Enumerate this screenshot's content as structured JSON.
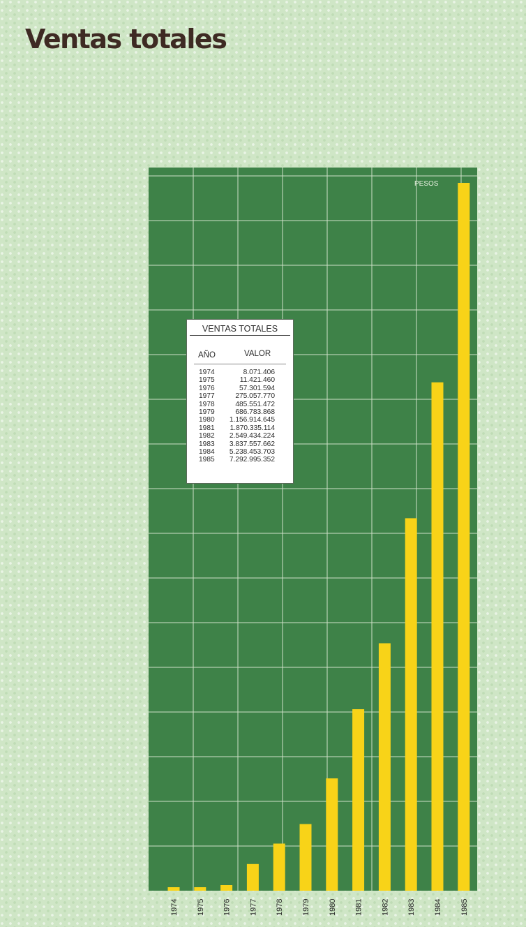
{
  "page": {
    "title": "Ventas totales"
  },
  "colors": {
    "background": "#cfe6c6",
    "chart_background": "#3e8248",
    "grid": "#cfe0c8",
    "bar": "#f8d318",
    "title": "#3e2a23"
  },
  "table": {
    "title": "VENTAS TOTALES",
    "col_year": "AÑO",
    "col_value": "VALOR",
    "rows": [
      {
        "year": "1974",
        "value": "8.071.406"
      },
      {
        "year": "1975",
        "value": "11.421.460"
      },
      {
        "year": "1976",
        "value": "57.301.594"
      },
      {
        "year": "1977",
        "value": "275.057.770"
      },
      {
        "year": "1978",
        "value": "485.551.472"
      },
      {
        "year": "1979",
        "value": "686.783.868"
      },
      {
        "year": "1980",
        "value": "1.156.914.645"
      },
      {
        "year": "1981",
        "value": "1.870.335.114"
      },
      {
        "year": "1982",
        "value": "2.549.434.224"
      },
      {
        "year": "1983",
        "value": "3.837.557.662"
      },
      {
        "year": "1984",
        "value": "5.238.453.703"
      },
      {
        "year": "1985",
        "value": "7.292.995.352"
      }
    ]
  },
  "chart_data": {
    "type": "bar",
    "title": "",
    "unit_label": "PESOS",
    "categories": [
      "1974",
      "1975",
      "1976",
      "1977",
      "1978",
      "1979",
      "1980",
      "1981",
      "1982",
      "1983",
      "1984",
      "1985"
    ],
    "values": [
      8071406,
      11421460,
      57301594,
      275057770,
      485551472,
      686783868,
      1156914645,
      1870335114,
      2549434224,
      3837557662,
      5238453703,
      7292995352
    ],
    "ylim": [
      0,
      7292995352
    ],
    "grid": true,
    "legend": "none"
  }
}
